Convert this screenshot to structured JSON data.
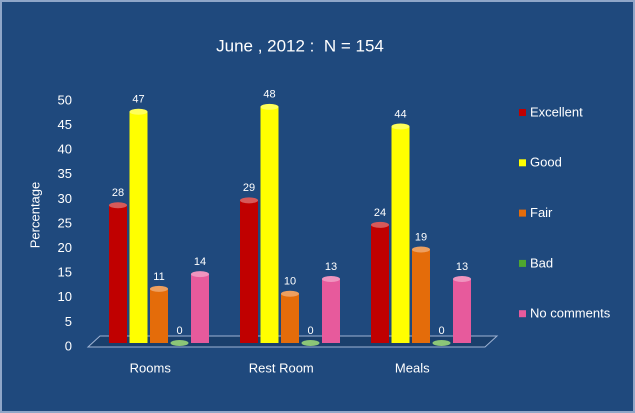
{
  "chart_data": {
    "type": "bar",
    "title": "June , 2012 :  N = 154",
    "y_label": "Percentage",
    "categories": [
      "Rooms",
      "Rest Room",
      "Meals"
    ],
    "series": [
      {
        "name": "Excellent",
        "color": "#c00000",
        "values": [
          28,
          29,
          24
        ]
      },
      {
        "name": "Good",
        "color": "#ffff00",
        "values": [
          47,
          48,
          44
        ]
      },
      {
        "name": "Fair",
        "color": "#e46c0a",
        "values": [
          11,
          10,
          19
        ]
      },
      {
        "name": "Bad",
        "color": "#4ea72e",
        "values": [
          0,
          0,
          0
        ]
      },
      {
        "name": "No comments",
        "color": "#e75a9c",
        "values": [
          14,
          13,
          13
        ]
      }
    ],
    "ylim": [
      0,
      50
    ],
    "yticks": [
      0,
      5,
      10,
      15,
      20,
      25,
      30,
      35,
      40,
      45,
      50
    ],
    "grid": false,
    "legend": "right"
  }
}
